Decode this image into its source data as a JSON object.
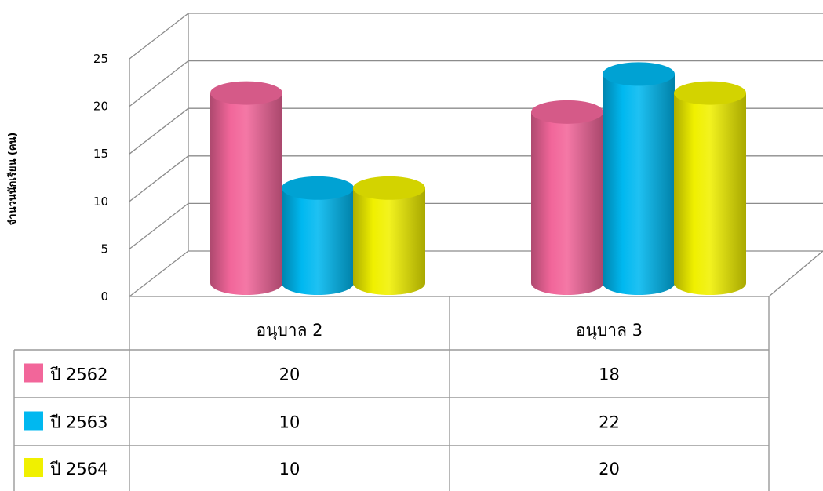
{
  "chart_data": {
    "type": "bar",
    "ylabel": "จำนวนนักเรียน (คน)",
    "ylim": [
      0,
      25
    ],
    "yticks": [
      0,
      5,
      10,
      15,
      20,
      25
    ],
    "categories": [
      "อนุบาล 2",
      "อนุบาล 3"
    ],
    "series": [
      {
        "name": "ปี 2562",
        "values": [
          20,
          18
        ],
        "color": "#f2669a"
      },
      {
        "name": "ปี 2563",
        "values": [
          10,
          22
        ],
        "color": "#00b8f0"
      },
      {
        "name": "ปี 2564",
        "values": [
          10,
          20
        ],
        "color": "#f0f000"
      }
    ],
    "style": "3d-cylinder",
    "gridlines": true,
    "legend": "data-table-below"
  }
}
